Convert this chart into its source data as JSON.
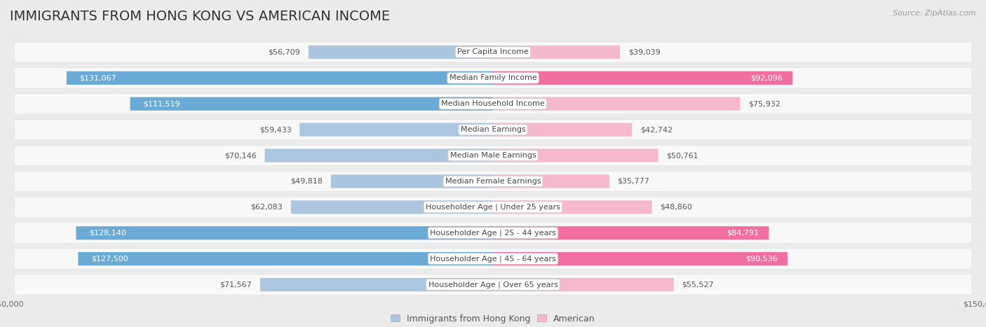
{
  "title": "IMMIGRANTS FROM HONG KONG VS AMERICAN INCOME",
  "source": "Source: ZipAtlas.com",
  "categories": [
    "Per Capita Income",
    "Median Family Income",
    "Median Household Income",
    "Median Earnings",
    "Median Male Earnings",
    "Median Female Earnings",
    "Householder Age | Under 25 years",
    "Householder Age | 25 - 44 years",
    "Householder Age | 45 - 64 years",
    "Householder Age | Over 65 years"
  ],
  "hk_values": [
    56709,
    131067,
    111519,
    59433,
    70146,
    49818,
    62083,
    128140,
    127500,
    71567
  ],
  "us_values": [
    39039,
    92096,
    75932,
    42742,
    50761,
    35777,
    48860,
    84791,
    90536,
    55527
  ],
  "hk_color_light": "#adc6e0",
  "hk_color_dark": "#6aaad4",
  "us_color_light": "#f5b8cc",
  "us_color_dark": "#f06fa0",
  "hk_threshold": 0.65,
  "us_threshold": 0.55,
  "max_value": 150000,
  "bg_color": "#ebebeb",
  "row_bg": "#f8f8f8",
  "row_shadow": "#d8d8d8",
  "label_box_color": "#ffffff",
  "title_fontsize": 14,
  "label_fontsize": 8,
  "value_fontsize": 8,
  "legend_fontsize": 9,
  "source_fontsize": 8
}
